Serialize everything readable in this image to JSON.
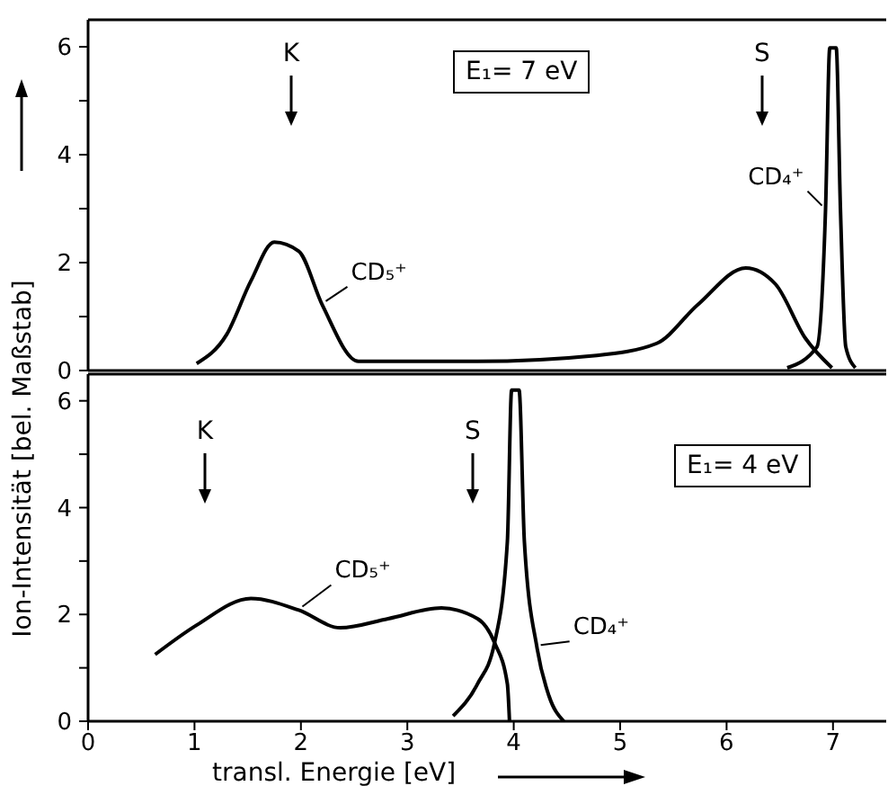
{
  "chart_data": [
    {
      "type": "line",
      "ylabel": "Ion-Intensität [bel. Maßstab]",
      "xlim": [
        0,
        7.5
      ],
      "ylim": [
        0,
        6.5
      ],
      "yticks": [
        0,
        {
          "value": 1,
          "label": null
        },
        2,
        {
          "value": 3,
          "label": null
        },
        4,
        {
          "value": 5,
          "label": null
        },
        6
      ],
      "tick_labels": "y",
      "marker": "none",
      "line_style": "solid",
      "annotations": [
        "E₁= 7 eV",
        "K",
        "S"
      ],
      "series": [
        {
          "name": "CD₅⁺",
          "color": "#000000",
          "x": [
            1.02,
            1.3,
            1.53,
            1.75,
            1.98,
            2.2,
            2.54,
            3.66,
            4.78,
            5.34,
            5.73,
            6.18,
            6.46,
            6.74,
            6.99
          ],
          "values": [
            0.13,
            0.66,
            1.66,
            2.38,
            2.21,
            1.22,
            0.17,
            0.17,
            0.28,
            0.5,
            1.22,
            1.9,
            1.6,
            0.6,
            0.05
          ]
        },
        {
          "name": "CD₄⁺",
          "color": "#000000",
          "x": [
            6.57,
            6.85,
            6.93,
            6.97,
            7.03,
            7.07,
            7.12,
            7.21
          ],
          "values": [
            0.05,
            0.44,
            2.99,
            5.98,
            5.98,
            2.99,
            0.44,
            0.05
          ]
        }
      ]
    },
    {
      "type": "line",
      "xlabel": "transl. Energie [eV]",
      "xlim": [
        0,
        7.5
      ],
      "xticks": [
        0,
        1,
        2,
        3,
        4,
        5,
        6,
        7
      ],
      "ylim": [
        0,
        6.5
      ],
      "yticks": [
        0,
        {
          "value": 1,
          "label": null
        },
        2,
        {
          "value": 3,
          "label": null
        },
        4,
        {
          "value": 5,
          "label": null
        },
        6
      ],
      "marker": "none",
      "line_style": "solid",
      "annotations": [
        "E₁= 4 eV",
        "K",
        "S"
      ],
      "series": [
        {
          "name": "CD₅⁺",
          "color": "#000000",
          "x": [
            0.63,
            1.02,
            1.53,
            1.98,
            2.37,
            2.82,
            3.32,
            3.66,
            3.82,
            3.94,
            3.96
          ],
          "values": [
            1.25,
            1.8,
            2.3,
            2.08,
            1.75,
            1.92,
            2.12,
            1.92,
            1.47,
            0.7,
            0
          ]
        },
        {
          "name": "CD₄⁺",
          "color": "#000000",
          "x": [
            3.43,
            3.66,
            3.82,
            3.94,
            3.98,
            4.05,
            4.1,
            4.22,
            4.33,
            4.47
          ],
          "values": [
            0.1,
            0.7,
            1.47,
            3.36,
            6.2,
            6.2,
            3.36,
            1.36,
            0.48,
            0
          ]
        }
      ]
    }
  ]
}
